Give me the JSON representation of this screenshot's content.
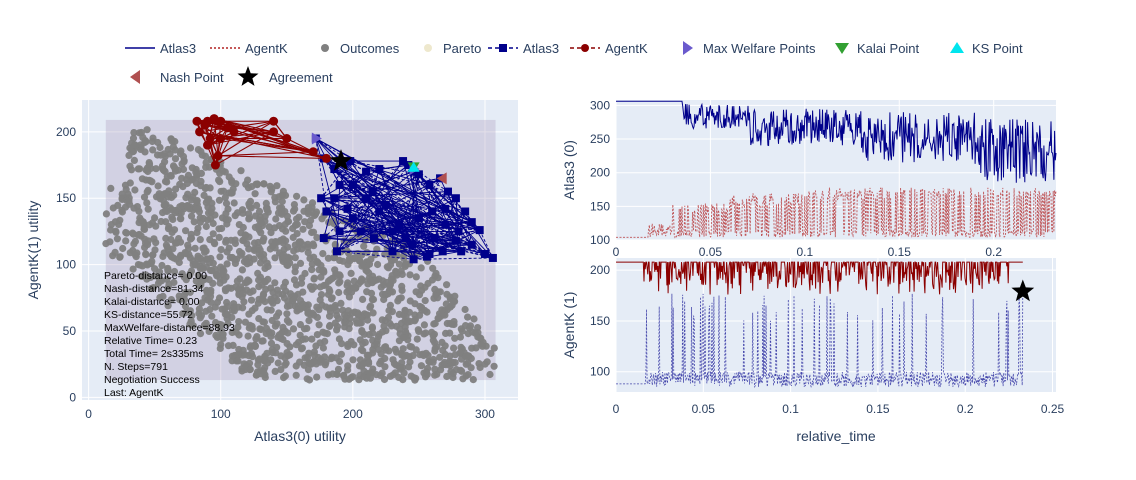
{
  "legend": {
    "items": [
      {
        "label": "Atlas3",
        "symbol": "line",
        "color": "#00008b",
        "dash": "solid"
      },
      {
        "label": "AgentK",
        "symbol": "line",
        "color": "#b22222",
        "dash": "dot"
      },
      {
        "label": "Outcomes",
        "symbol": "circle",
        "color": "#808080"
      },
      {
        "label": "Pareto",
        "symbol": "circle",
        "color": "#eee8cd"
      },
      {
        "label": "Atlas3",
        "symbol": "line-square",
        "color": "#00008b",
        "dash": "dash"
      },
      {
        "label": "AgentK",
        "symbol": "line-circle",
        "color": "#8b0000",
        "dash": "dash"
      },
      {
        "label": "Max Welfare Points",
        "symbol": "triangle-right",
        "color": "#6a5acd"
      },
      {
        "label": "Kalai Point",
        "symbol": "triangle-down",
        "color": "#32a032"
      },
      {
        "label": "KS Point",
        "symbol": "triangle-up",
        "color": "#00e5ee"
      },
      {
        "label": "Nash Point",
        "symbol": "triangle-left",
        "color": "#b05050"
      },
      {
        "label": "Agreement",
        "symbol": "star",
        "color": "#000000"
      }
    ]
  },
  "colors": {
    "atlas": "#00008b",
    "agentk": "#8b0000",
    "agentk_light": "#b22222",
    "outcomes": "#808080",
    "plot_bg": "#e5ecf6",
    "grid": "#ffffff",
    "rect": "#b0a0c0"
  },
  "stats": [
    "Pareto-distance= 0.00",
    "Nash-distance=81.34",
    "Kalai-distance= 0.00",
    "KS-distance=55.72",
    "MaxWelfare-distance=88.93",
    "Relative Time= 0.23",
    "Total Time= 2s335ms",
    "N. Steps=791",
    "Negotiation Success",
    "Last: AgentK"
  ],
  "chart_data": [
    {
      "type": "scatter",
      "xlabel": "Atlas3(0) utility",
      "ylabel": "AgentK(1) utility",
      "xlim": [
        -5,
        325
      ],
      "ylim": [
        -2,
        224
      ],
      "xticks": [
        0,
        100,
        200,
        300
      ],
      "yticks": [
        0,
        50,
        100,
        150,
        200
      ],
      "outcomes_region": {
        "x": [
          13,
          308
        ],
        "y": [
          13,
          209
        ]
      },
      "agentk_offers": [
        [
          82,
          208
        ],
        [
          90,
          208
        ],
        [
          100,
          208
        ],
        [
          140,
          208
        ],
        [
          88,
          205
        ],
        [
          84,
          200
        ],
        [
          92,
          195
        ],
        [
          98,
          182
        ],
        [
          96,
          175
        ],
        [
          140,
          200
        ],
        [
          150,
          195
        ],
        [
          170,
          185
        ],
        [
          180,
          180
        ],
        [
          90,
          190
        ],
        [
          100,
          195
        ],
        [
          105,
          203
        ],
        [
          110,
          200
        ],
        [
          95,
          210
        ]
      ],
      "atlas_offers": [
        [
          172,
          195
        ],
        [
          178,
          180
        ],
        [
          186,
          172
        ],
        [
          198,
          178
        ],
        [
          210,
          170
        ],
        [
          220,
          172
        ],
        [
          238,
          178
        ],
        [
          242,
          175
        ],
        [
          246,
          170
        ],
        [
          250,
          168
        ],
        [
          258,
          160
        ],
        [
          266,
          165
        ],
        [
          272,
          155
        ],
        [
          278,
          150
        ],
        [
          285,
          140
        ],
        [
          290,
          132
        ],
        [
          296,
          126
        ],
        [
          300,
          108
        ],
        [
          306,
          105
        ],
        [
          280,
          125
        ],
        [
          270,
          130
        ],
        [
          260,
          140
        ],
        [
          250,
          135
        ],
        [
          240,
          120
        ],
        [
          230,
          110
        ],
        [
          220,
          140
        ],
        [
          210,
          150
        ],
        [
          200,
          135
        ],
        [
          190,
          125
        ],
        [
          180,
          140
        ],
        [
          178,
          120
        ],
        [
          190,
          160
        ],
        [
          200,
          160
        ],
        [
          215,
          155
        ],
        [
          225,
          145
        ],
        [
          235,
          130
        ],
        [
          245,
          115
        ],
        [
          258,
          108
        ],
        [
          268,
          110
        ],
        [
          278,
          118
        ],
        [
          188,
          110
        ],
        [
          176,
          150
        ],
        [
          186,
          150
        ],
        [
          196,
          142
        ],
        [
          206,
          125
        ],
        [
          216,
          120
        ],
        [
          230,
          125
        ],
        [
          262,
          120
        ],
        [
          270,
          142
        ],
        [
          282,
          110
        ],
        [
          246,
          104
        ],
        [
          256,
          106
        ],
        [
          290,
          115
        ]
      ],
      "agreement": [
        191,
        178
      ],
      "max_welfare_points": [
        [
          172,
          195
        ],
        [
          246,
          172
        ]
      ],
      "kalai_point": [
        246,
        174
      ],
      "ks_point": [
        246,
        173
      ],
      "nash_point": [
        268,
        165
      ]
    },
    {
      "type": "line",
      "ylabel": "Atlas3 (0)",
      "xlim": [
        0,
        0.233
      ],
      "ylim": [
        100,
        308
      ],
      "xticks": [
        0,
        0.05,
        0.1,
        0.15,
        0.2
      ],
      "yticks": [
        100,
        150,
        200,
        250,
        300
      ],
      "series": [
        {
          "name": "Atlas3",
          "segments": [
            [
              0,
              306,
              300,
              306
            ],
            [
              0.035,
              300,
              275,
              306
            ],
            [
              0.07,
              295,
              265,
              302
            ],
            [
              0.13,
              270,
              240,
              295
            ],
            [
              0.19,
              260,
              215,
              290
            ],
            [
              0.233,
              240,
              185,
              280
            ]
          ]
        },
        {
          "name": "AgentK",
          "segments": [
            [
              0,
              104,
              104,
              104
            ],
            [
              0.017,
              104,
              104,
              110
            ],
            [
              0.03,
              110,
              104,
              125
            ],
            [
              0.06,
              140,
              104,
              155
            ],
            [
              0.1,
              150,
              104,
              170
            ],
            [
              0.15,
              160,
              104,
              178
            ],
            [
              0.233,
              165,
              104,
              178
            ]
          ]
        }
      ]
    },
    {
      "type": "line",
      "xlabel": "relative_time",
      "ylabel": "AgentK (1)",
      "xlim": [
        0,
        0.252
      ],
      "ylim": [
        80,
        212
      ],
      "xticks": [
        0,
        0.05,
        0.1,
        0.15,
        0.2,
        0.25
      ],
      "yticks": [
        100,
        150,
        200
      ],
      "series": [
        {
          "name": "AgentK",
          "base": 208,
          "low_range": [
            185,
            205
          ],
          "dip_to": 176
        },
        {
          "name": "Atlas3",
          "base": 88,
          "low_range": [
            85,
            100
          ],
          "spike_to": [
            150,
            178
          ]
        }
      ],
      "agreement": [
        0.233,
        179
      ]
    }
  ]
}
